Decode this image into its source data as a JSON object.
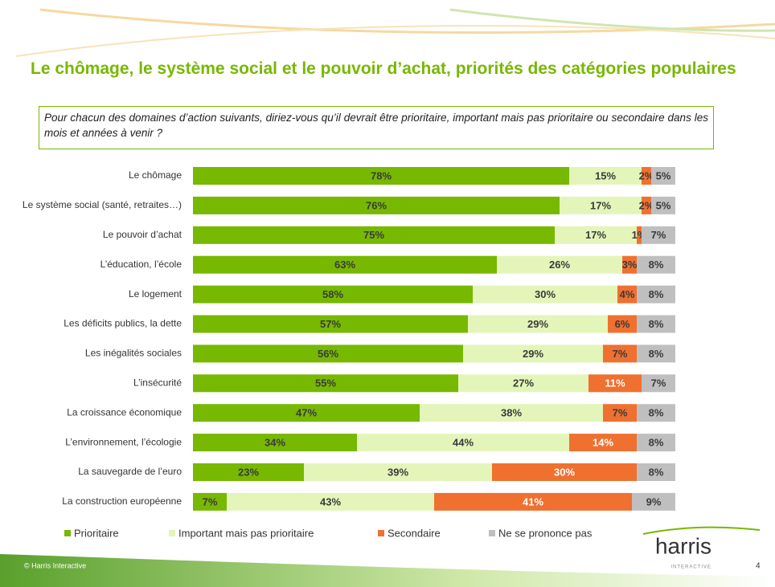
{
  "chart_data": {
    "type": "stacked-barh",
    "title": "Le chômage, le système social et le pouvoir d’achat, priorités des catégories populaires",
    "subtitle": "Pour chacun des domaines d’action suivants, diriez-vous qu’il devrait être prioritaire, important mais pas prioritaire ou secondaire dans les mois et années à venir ?",
    "categories": [
      "Le chômage",
      "Le système social (santé, retraites…)",
      "Le pouvoir d’achat",
      "L’éducation, l’école",
      "Le logement",
      "Les déficits publics, la dette",
      "Les inégalités sociales",
      "L’insécurité",
      "La croissance économique",
      "L’environnement, l’écologie",
      "La sauvegarde de l’euro",
      "La  construction européenne"
    ],
    "xlim": [
      0,
      100
    ],
    "legend": "bottom",
    "series": [
      {
        "name": "Prioritaire",
        "color": "#77b800",
        "values": [
          78,
          76,
          75,
          63,
          58,
          57,
          56,
          55,
          47,
          34,
          23,
          7
        ],
        "value_labels": [
          "78%",
          "76%",
          "75%",
          "63%",
          "58%",
          "57%",
          "56%",
          "55%",
          "47%",
          "34%",
          "23%",
          "7%"
        ]
      },
      {
        "name": "Important mais pas prioritaire",
        "color": "#e3f5b9",
        "values": [
          15,
          17,
          17,
          26,
          30,
          29,
          29,
          27,
          38,
          44,
          39,
          43
        ],
        "value_labels": [
          "15%",
          "17%",
          "17%",
          "26%",
          "30%",
          "29%",
          "29%",
          "27%",
          "38%",
          "44%",
          "39%",
          "43%"
        ]
      },
      {
        "name": "Secondaire",
        "color": "#f07030",
        "values": [
          2,
          2,
          1,
          3,
          4,
          6,
          7,
          11,
          7,
          14,
          30,
          41
        ],
        "value_labels": [
          "2%",
          "2%",
          "1%",
          "3%",
          "4%",
          "6%",
          "7%",
          "11%",
          "7%",
          "14%",
          "30%",
          "41%"
        ]
      },
      {
        "name": "Ne se prononce pas",
        "color": "#bfbfbf",
        "values": [
          5,
          5,
          7,
          8,
          8,
          8,
          8,
          7,
          8,
          8,
          8,
          9
        ],
        "value_labels": [
          "5%",
          "5%",
          "7%",
          "8%",
          "8%",
          "8%",
          "8%",
          "7%",
          "8%",
          "8%",
          "8%",
          "9%"
        ]
      }
    ]
  },
  "footer": {
    "copyright": "© Harris Interactive",
    "logo": "harris",
    "logo_sub": "INTERACTIVE",
    "page": "4"
  }
}
